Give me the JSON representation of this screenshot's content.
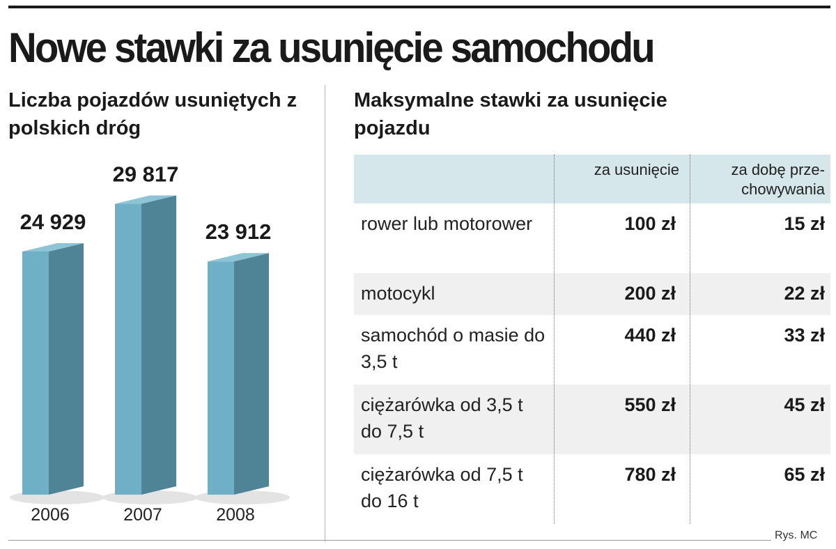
{
  "title": "Nowe stawki za usunięcie samochodu",
  "left_panel": {
    "subtitle": "Liczba pojazdów usunię­tych z polskich dróg"
  },
  "right_panel": {
    "subtitle": "Maksymalne stawki za usunięcie pojazdu",
    "columns": [
      "za usunięcie",
      "za dobę prze­chowywania"
    ],
    "rows": [
      {
        "vehicle": "rower lub motorower",
        "removal": "100 zł",
        "storage": "15 zł"
      },
      {
        "vehicle": "motocykl",
        "removal": "200 zł",
        "storage": "22 zł"
      },
      {
        "vehicle": "samochód o masie do 3,5 t",
        "removal": "440 zł",
        "storage": "33 zł"
      },
      {
        "vehicle": "ciężarówka od 3,5 t do 7,5 t",
        "removal": "550 zł",
        "storage": "45 zł"
      },
      {
        "vehicle": "ciężarówka od 7,5 t do 16 t",
        "removal": "780 zł",
        "storage": "65 zł"
      }
    ]
  },
  "credit": "Rys. MC",
  "colors": {
    "bar_front": "#6fb0c7",
    "bar_side": "#4f8497",
    "bar_top": "#8cc4d6",
    "header_bg": "#d5e7ea",
    "shade_row": "#f0f0f0"
  },
  "chart_data": {
    "type": "bar",
    "title": "Liczba pojazdów usunię­tych z polskich dróg",
    "categories": [
      "2006",
      "2007",
      "2008"
    ],
    "values": [
      24929,
      29817,
      23912
    ],
    "value_labels": [
      "24 929",
      "29 817",
      "23 912"
    ],
    "ylim": [
      0,
      30000
    ],
    "grid": false,
    "legend": "none"
  }
}
